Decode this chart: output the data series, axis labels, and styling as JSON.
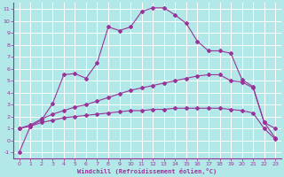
{
  "bg_color": "#b3e8e8",
  "grid_color": "#aadddd",
  "line_color": "#993399",
  "xlabel": "Windchill (Refroidissement éolien,°C)",
  "xlim": [
    -0.5,
    23.5
  ],
  "ylim": [
    -1.5,
    11.5
  ],
  "xticks": [
    0,
    1,
    2,
    3,
    4,
    5,
    6,
    7,
    8,
    9,
    10,
    11,
    12,
    13,
    14,
    15,
    16,
    17,
    18,
    19,
    20,
    21,
    22,
    23
  ],
  "yticks": [
    -1,
    0,
    1,
    2,
    3,
    4,
    5,
    6,
    7,
    8,
    9,
    10,
    11
  ],
  "line1_x": [
    0,
    1,
    2,
    3,
    4,
    5,
    6,
    7,
    8,
    9,
    10,
    11,
    12,
    13,
    14,
    15,
    16,
    17,
    18,
    19,
    20,
    21,
    22,
    23
  ],
  "line1_y": [
    -1.0,
    1.2,
    1.7,
    3.1,
    5.5,
    5.6,
    5.2,
    6.5,
    9.5,
    9.2,
    9.5,
    10.8,
    11.1,
    11.1,
    10.5,
    9.8,
    8.3,
    7.5,
    7.5,
    7.3,
    5.1,
    4.5,
    1.5,
    1.0
  ],
  "line2_x": [
    0,
    1,
    2,
    3,
    4,
    5,
    6,
    7,
    8,
    9,
    10,
    11,
    12,
    13,
    14,
    15,
    16,
    17,
    18,
    19,
    20,
    21,
    22,
    23
  ],
  "line2_y": [
    1.0,
    1.3,
    1.8,
    2.2,
    2.5,
    2.8,
    3.0,
    3.3,
    3.6,
    3.9,
    4.2,
    4.4,
    4.6,
    4.8,
    5.0,
    5.2,
    5.4,
    5.5,
    5.5,
    5.0,
    4.9,
    4.4,
    1.5,
    0.2
  ],
  "line3_x": [
    0,
    1,
    2,
    3,
    4,
    5,
    6,
    7,
    8,
    9,
    10,
    11,
    12,
    13,
    14,
    15,
    16,
    17,
    18,
    19,
    20,
    21,
    22,
    23
  ],
  "line3_y": [
    1.0,
    1.2,
    1.5,
    1.7,
    1.9,
    2.0,
    2.1,
    2.2,
    2.3,
    2.4,
    2.5,
    2.5,
    2.6,
    2.6,
    2.7,
    2.7,
    2.7,
    2.7,
    2.7,
    2.6,
    2.5,
    2.3,
    1.0,
    0.1
  ]
}
